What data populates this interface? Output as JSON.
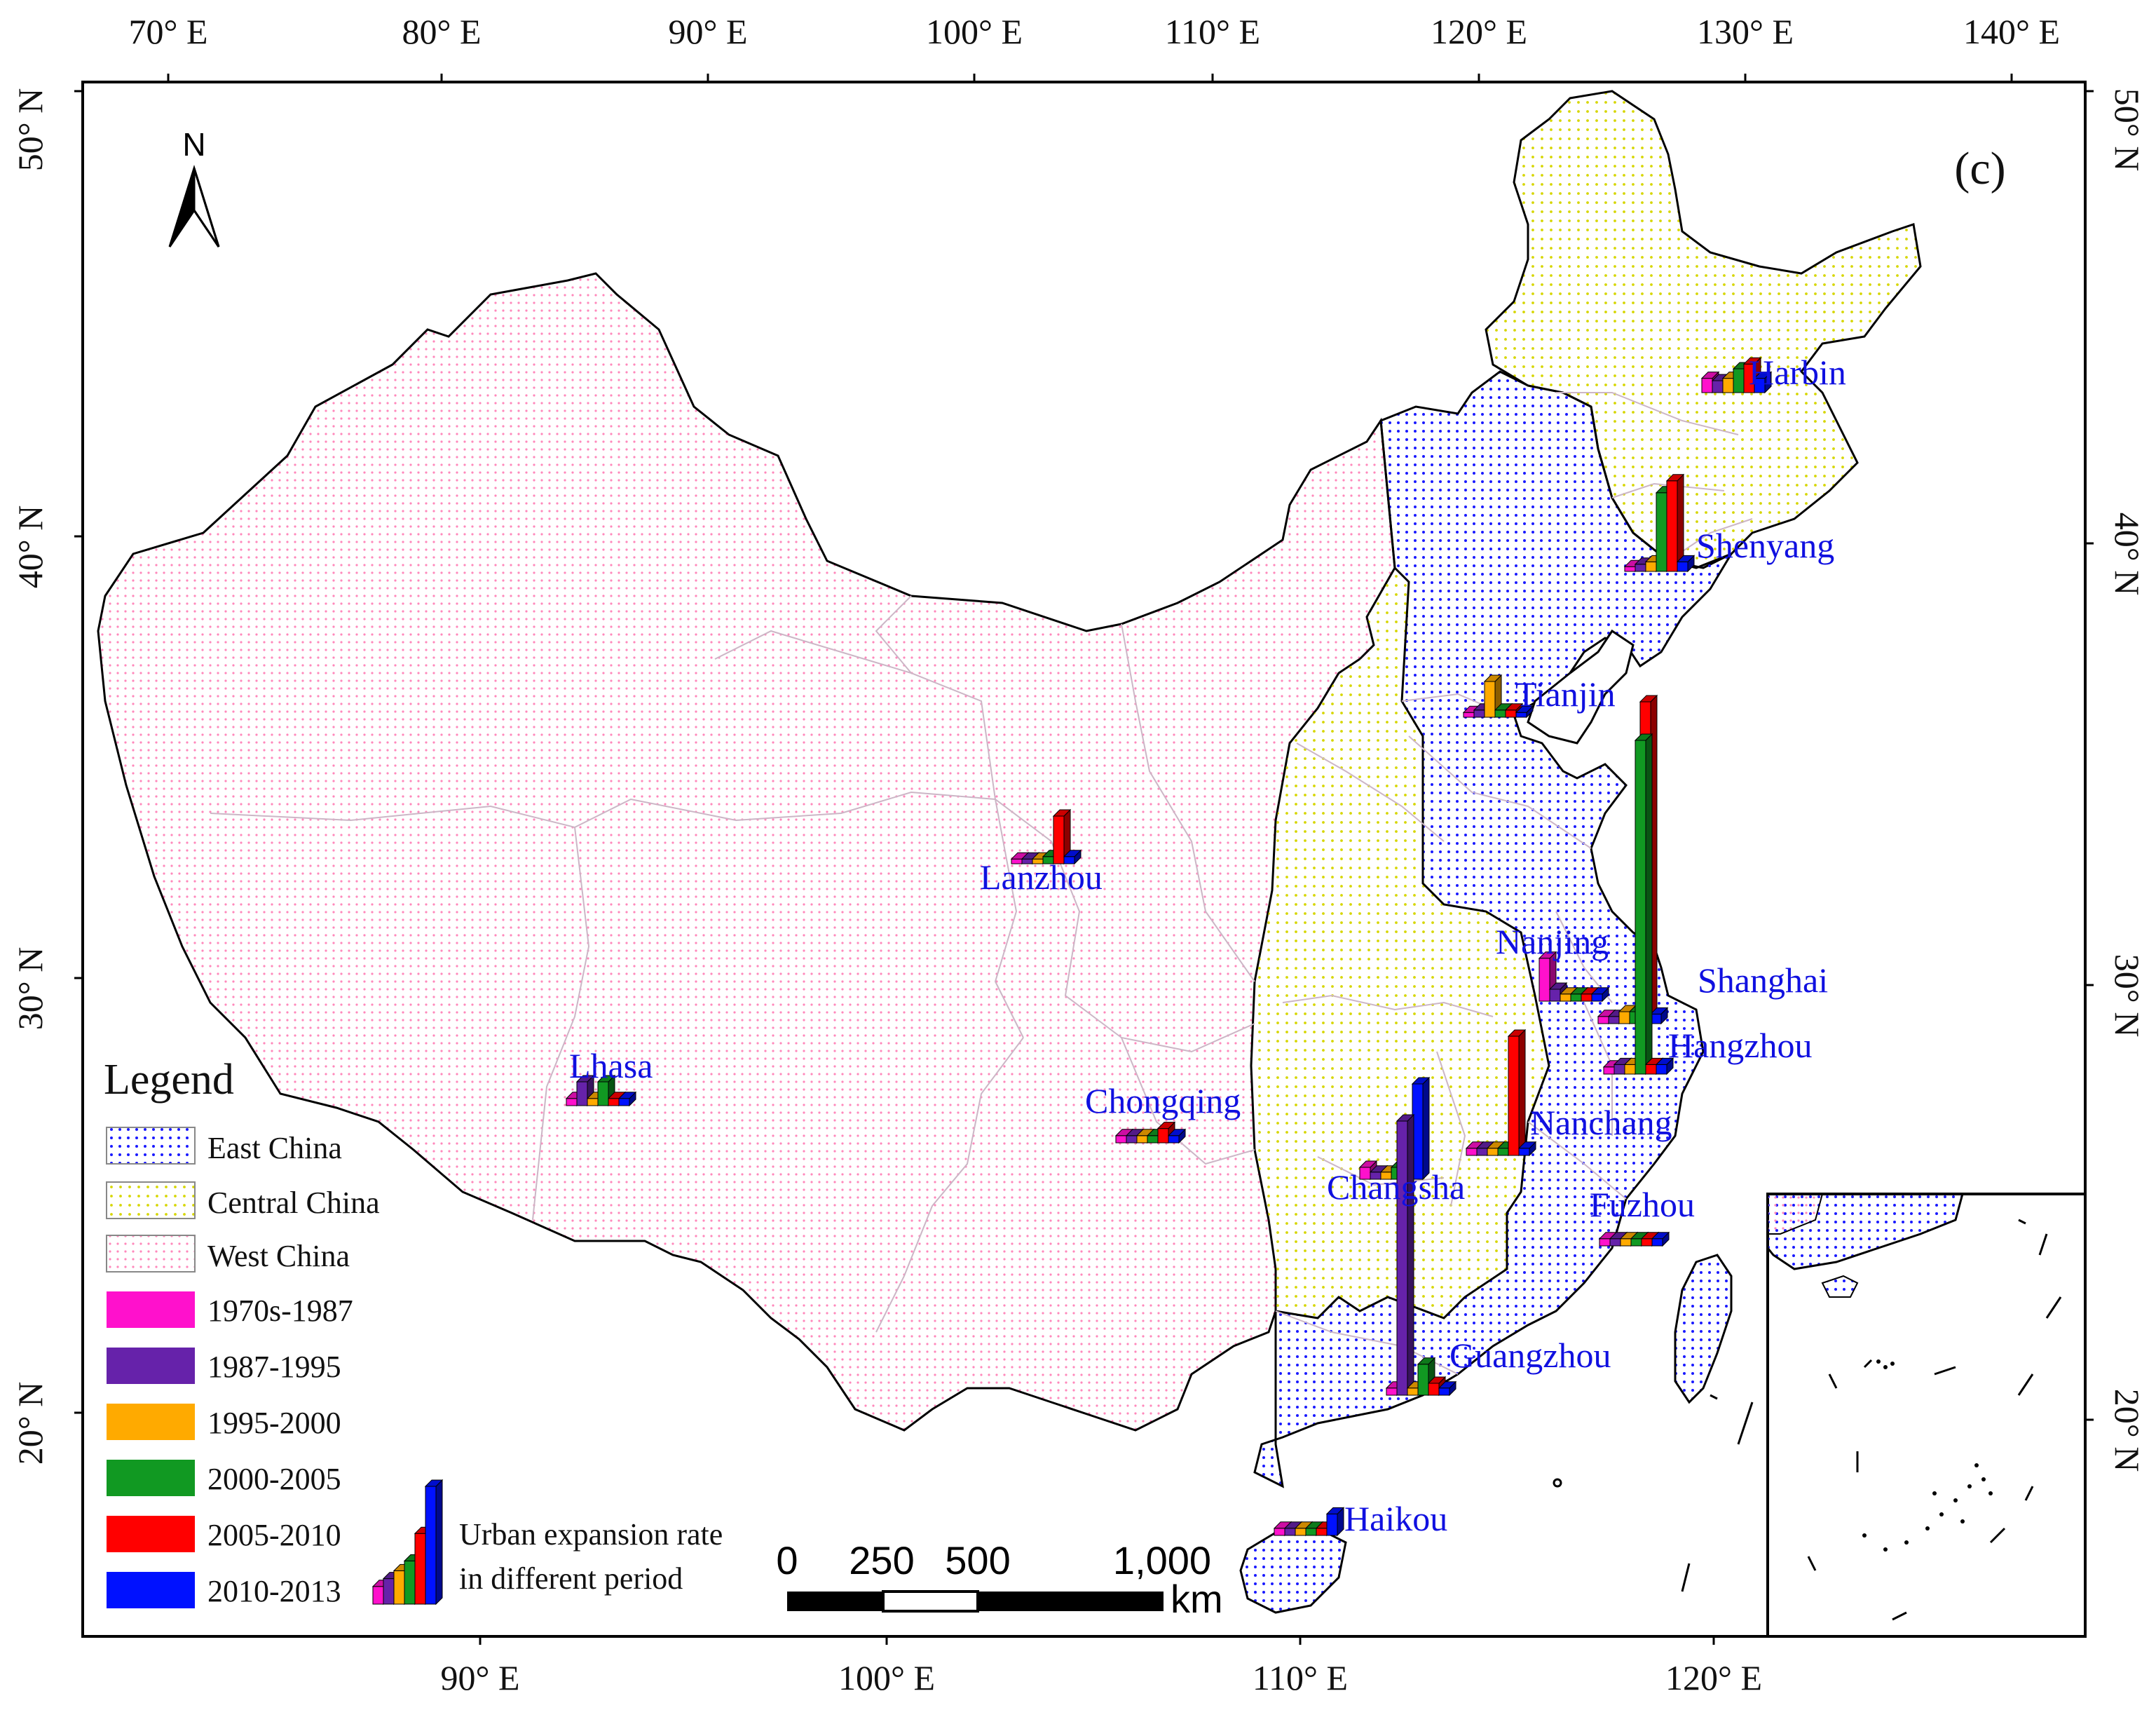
{
  "panel_label": "(c)",
  "north_arrow": {
    "label": "N",
    "icon": "north-arrow-icon"
  },
  "top_longitudes": [
    "70° E",
    "80° E",
    "90° E",
    "100° E",
    "110° E",
    "120° E",
    "130° E",
    "140° E"
  ],
  "bottom_longitudes": [
    "90° E",
    "100° E",
    "110° E",
    "120° E"
  ],
  "left_latitudes": [
    "50° N",
    "40° N",
    "30° N",
    "20° N"
  ],
  "right_latitudes": [
    "50° N",
    "40° N",
    "30° N",
    "20° N"
  ],
  "legend": {
    "title": "Legend",
    "regions": [
      {
        "label": "East China",
        "color": "#1a1aff"
      },
      {
        "label": "Central China",
        "color": "#d6d600"
      },
      {
        "label": "West China",
        "color": "#ff88bb"
      }
    ],
    "periods": [
      {
        "label": "1970s-1987",
        "color": "#ff11cc"
      },
      {
        "label": "1987-1995",
        "color": "#6622aa"
      },
      {
        "label": "1995-2000",
        "color": "#ffaa00"
      },
      {
        "label": "2000-2005",
        "color": "#119922"
      },
      {
        "label": "2005-2010",
        "color": "#ff0000"
      },
      {
        "label": "2010-2013",
        "color": "#0011ff"
      }
    ],
    "bar_caption_line1": "Urban expansion rate",
    "bar_caption_line2": "in different period"
  },
  "scale_bar": {
    "labels": [
      "0",
      "250",
      "500",
      "1,000"
    ],
    "unit": "km"
  },
  "cities": [
    {
      "name": "Harbin",
      "rates": [
        0.6,
        0.5,
        0.6,
        1.0,
        1.2,
        0.6
      ]
    },
    {
      "name": "Shenyang",
      "rates": [
        0.2,
        0.3,
        0.4,
        3.3,
        3.8,
        0.4
      ]
    },
    {
      "name": "Tianjin",
      "rates": [
        0.2,
        0.3,
        1.5,
        0.3,
        0.3,
        0.2
      ]
    },
    {
      "name": "Lanzhou",
      "rates": [
        0.2,
        0.2,
        0.2,
        0.3,
        2.0,
        0.3
      ]
    },
    {
      "name": "Nanjing",
      "rates": [
        1.8,
        0.5,
        0.3,
        0.3,
        0.3,
        0.3
      ]
    },
    {
      "name": "Shanghai",
      "rates": [
        0.3,
        0.3,
        0.5,
        0.5,
        13.5,
        0.4
      ]
    },
    {
      "name": "Hangzhou",
      "rates": [
        0.3,
        0.4,
        0.4,
        14.0,
        0.4,
        0.4
      ]
    },
    {
      "name": "Lhasa",
      "rates": [
        0.3,
        1.0,
        0.3,
        1.0,
        0.3,
        0.3
      ]
    },
    {
      "name": "Chongqing",
      "rates": [
        0.3,
        0.3,
        0.3,
        0.3,
        0.6,
        0.3
      ]
    },
    {
      "name": "Nanchang",
      "rates": [
        0.3,
        0.3,
        0.3,
        0.3,
        5.0,
        0.3
      ]
    },
    {
      "name": "Changsha",
      "rates": [
        0.5,
        0.3,
        0.3,
        0.5,
        0.6,
        4.0
      ]
    },
    {
      "name": "Fuzhou",
      "rates": [
        0.3,
        0.3,
        0.3,
        0.3,
        0.3,
        0.3
      ]
    },
    {
      "name": "Guangzhou",
      "rates": [
        0.3,
        11.5,
        0.3,
        1.3,
        0.5,
        0.3
      ]
    },
    {
      "name": "Haikou",
      "rates": [
        0.3,
        0.3,
        0.3,
        0.3,
        0.3,
        0.9
      ]
    }
  ]
}
